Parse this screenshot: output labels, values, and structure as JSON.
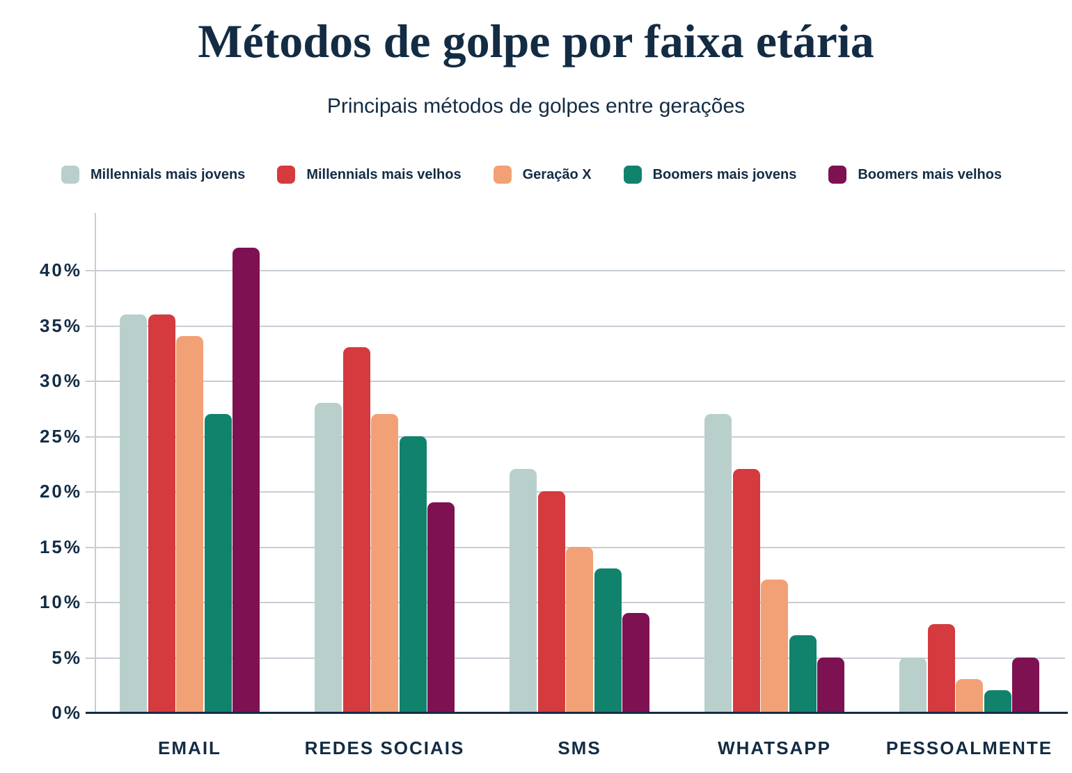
{
  "title": "Métodos de golpe por faixa etária",
  "subtitle": "Principais métodos de golpes entre gerações",
  "colors": {
    "text_navy": "#132C44",
    "gridline": "#C8CDD5",
    "background": "#FFFFFF"
  },
  "chart_data": {
    "type": "bar",
    "title": "Métodos de golpe por faixa etária",
    "subtitle": "Principais métodos de golpes entre gerações",
    "categories": [
      "EMAIL",
      "REDES SOCIAIS",
      "SMS",
      "WHATSAPP",
      "PESSOALMENTE"
    ],
    "series": [
      {
        "name": "Millennials mais jovens",
        "color": "#B9CFCC",
        "values": [
          36,
          28,
          22,
          27,
          5
        ]
      },
      {
        "name": "Millennials mais velhos",
        "color": "#D53A3F",
        "values": [
          36,
          33,
          20,
          22,
          8
        ]
      },
      {
        "name": "Geração X",
        "color": "#F2A176",
        "values": [
          34,
          27,
          15,
          12,
          3
        ]
      },
      {
        "name": "Boomers mais jovens",
        "color": "#11836D",
        "values": [
          27,
          25,
          13,
          7,
          2
        ]
      },
      {
        "name": "Boomers mais velhos",
        "color": "#7E1152",
        "values": [
          42,
          19,
          9,
          5,
          5
        ]
      }
    ],
    "y_axis": {
      "min": 0,
      "max": 45,
      "tick_step": 5,
      "tick_labels": [
        "0%",
        "5%",
        "10%",
        "15%",
        "20%",
        "25%",
        "30%",
        "35%",
        "40%"
      ],
      "unit": "%"
    },
    "grid": "horizontal",
    "legend_position": "top"
  }
}
